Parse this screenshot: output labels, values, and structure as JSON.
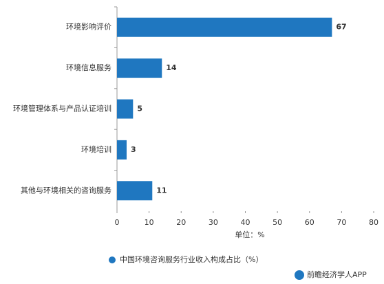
{
  "chart_data": {
    "type": "bar",
    "orientation": "horizontal",
    "categories": [
      "环境影响评价",
      "环境信息服务",
      "环境管理体系与产品认证培训",
      "环境培训",
      "其他与环境相关的咨询服务"
    ],
    "series": [
      {
        "name": "中国环境咨询服务行业收入构成占比（%）",
        "color": "#1f77c0",
        "values": [
          67,
          14,
          5,
          3,
          11
        ]
      }
    ],
    "xlim": [
      0,
      80
    ],
    "xticks": [
      0,
      10,
      20,
      30,
      40,
      50,
      60,
      70,
      80
    ],
    "x_label": "单位：%",
    "legend": "bottom",
    "source": "前瞻经济学人APP"
  }
}
